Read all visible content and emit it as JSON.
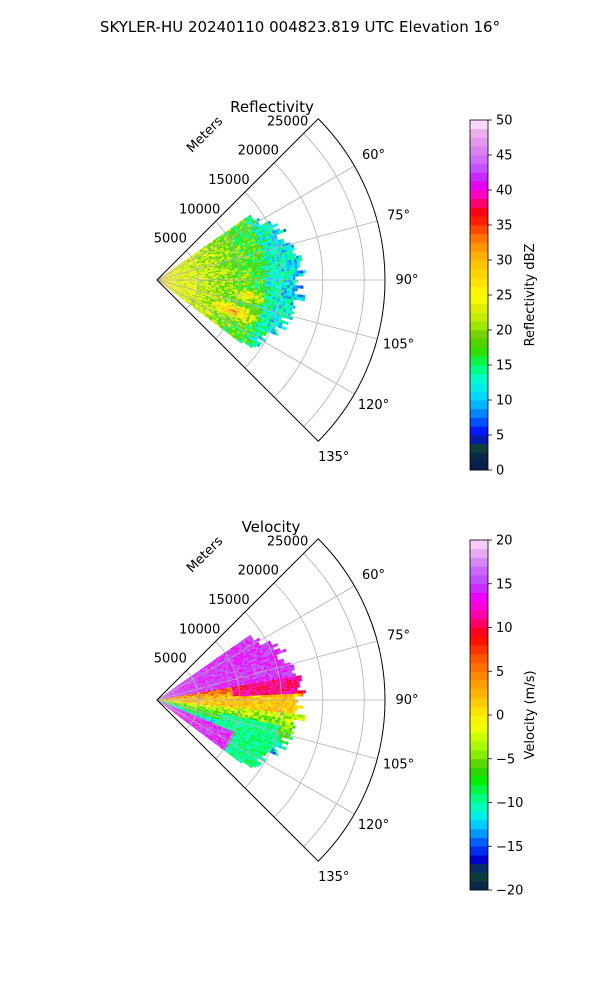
{
  "figure": {
    "title": "SKYLER-HU  20240110  004823.819 UTC Elevation 16°"
  },
  "chart_data": [
    {
      "type": "heatmap",
      "title": "Reflectivity",
      "projection": "polar-sector",
      "angle_range_deg": [
        45,
        135
      ],
      "angle_ticks": [
        "60°",
        "75°",
        "90°",
        "105°",
        "120°",
        "135°"
      ],
      "radial_label": "Meters",
      "radial_ticks": [
        "5000",
        "10000",
        "15000",
        "20000",
        "25000"
      ],
      "rmax": 27500,
      "grid": true,
      "colorbar": {
        "label": "Reflectivity dBZ",
        "range": [
          0,
          50
        ],
        "ticks": [
          "0",
          "5",
          "10",
          "15",
          "20",
          "25",
          "30",
          "35",
          "40",
          "45",
          "50"
        ]
      },
      "field": "reflectivity",
      "colors": {
        "low": "#00cc33",
        "mid": "#ffdd00",
        "high": "#ff2255",
        "peak": "#ff00cc"
      }
    },
    {
      "type": "heatmap",
      "title": "Velocity",
      "projection": "polar-sector",
      "angle_range_deg": [
        45,
        135
      ],
      "angle_ticks": [
        "60°",
        "75°",
        "90°",
        "105°",
        "120°",
        "135°"
      ],
      "radial_label": "Meters",
      "radial_ticks": [
        "5000",
        "10000",
        "15000",
        "20000",
        "25000"
      ],
      "rmax": 27500,
      "grid": true,
      "colorbar": {
        "label": "Velocity (m/s)",
        "range": [
          -20,
          20
        ],
        "ticks": [
          "−20",
          "−15",
          "−10",
          "−5",
          "0",
          "5",
          "10",
          "15",
          "20"
        ]
      },
      "field": "velocity"
    }
  ]
}
